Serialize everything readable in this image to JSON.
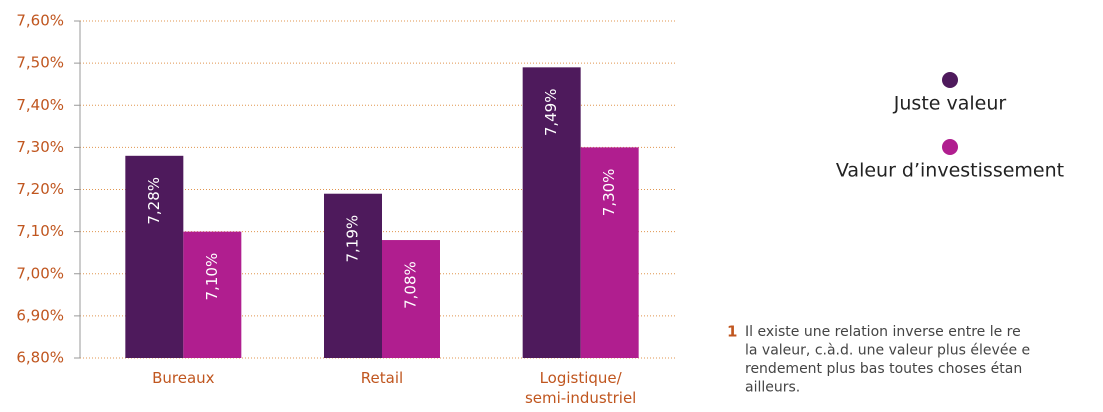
{
  "chart_data": {
    "type": "bar",
    "categories": [
      "Bureaux",
      "Retail",
      "Logistique/ semi-industriel"
    ],
    "series": [
      {
        "name": "Juste valeur",
        "color": "#4e1a5c",
        "values": [
          7.28,
          7.19,
          7.49
        ],
        "value_labels": [
          "7,28%",
          "7,19%",
          "7,49%"
        ]
      },
      {
        "name": "Valeur d’investissement",
        "color": "#b01e8f",
        "values": [
          7.1,
          7.08,
          7.3
        ],
        "value_labels": [
          "7,10%",
          "7,08%",
          "7,30%"
        ]
      }
    ],
    "ylim": [
      6.8,
      7.6
    ],
    "yticks": [
      {
        "value": 6.8,
        "label": "6,80%"
      },
      {
        "value": 6.9,
        "label": "6,90%"
      },
      {
        "value": 7.0,
        "label": "7,00%"
      },
      {
        "value": 7.1,
        "label": "7,10%"
      },
      {
        "value": 7.2,
        "label": "7,20%"
      },
      {
        "value": 7.3,
        "label": "7,30%"
      },
      {
        "value": 7.4,
        "label": "7,40%"
      },
      {
        "value": 7.5,
        "label": "7,50%"
      },
      {
        "value": 7.6,
        "label": "7,60%"
      }
    ],
    "grid": true,
    "legend": "right",
    "footnote": {
      "number": "1",
      "lines": [
        "Il existe une relation inverse entre le re",
        "la valeur, c.à.d. une valeur plus élevée e",
        "rendement plus bas toutes choses étan",
        "ailleurs."
      ]
    }
  }
}
